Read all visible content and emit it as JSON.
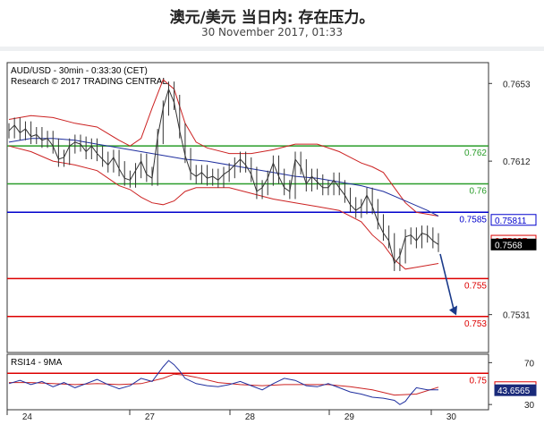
{
  "header": {
    "title": "澳元/美元 当日内: 存在压力。",
    "subtitle": "30 November 2017, 01:33"
  },
  "colors": {
    "price": "#333333",
    "bollinger": "#cc2222",
    "ma": "#1f2f9f",
    "resistance": "#2a9d2a",
    "pivot": "#0000cc",
    "support": "#dd0000",
    "current_label_bg": "#000000",
    "arrow": "#1a3a8a"
  },
  "chart_data": [
    {
      "type": "line",
      "title": "AUD/USD - 30min - 0:33:30 (CET)",
      "subtitle": "Research © 2017 TRADING CENTRAL",
      "ylim": [
        0.7511,
        0.7664
      ],
      "y_ticks": [
        "0.7653",
        "0.7612",
        "0.7531"
      ],
      "x_ticks": [
        "24",
        "27",
        "28",
        "29",
        "30"
      ],
      "levels": [
        {
          "name": "resistance-1",
          "value": 0.762,
          "label": "0.762",
          "role": "resistance"
        },
        {
          "name": "resistance-2",
          "value": 0.76,
          "label": "0.76",
          "role": "resistance"
        },
        {
          "name": "pivot",
          "value": 0.7585,
          "label": "0.7585",
          "role": "pivot"
        },
        {
          "name": "support-1",
          "value": 0.755,
          "label": "0.755",
          "role": "support"
        },
        {
          "name": "support-2",
          "value": 0.753,
          "label": "0.753",
          "role": "support"
        },
        {
          "name": "support-3",
          "value": 0.75,
          "label": "0.75",
          "role": "support"
        }
      ],
      "price_labels": [
        {
          "value": 0.7581,
          "label": "0.75811",
          "style": "blue"
        },
        {
          "value": 0.757,
          "label": "0.75697",
          "style": "red"
        },
        {
          "value": 0.7568,
          "label": "0.7568",
          "style": "current"
        }
      ],
      "series": [
        {
          "role": "price",
          "x": [
            0,
            1,
            2,
            3,
            4,
            5,
            6,
            7,
            8,
            9,
            10,
            11,
            12,
            13,
            14,
            15,
            16,
            17,
            18,
            19,
            20,
            21,
            22,
            23,
            24,
            25,
            26,
            27,
            28,
            29,
            30,
            31,
            32,
            33,
            34,
            35,
            36,
            37,
            38,
            39,
            40,
            41,
            42,
            43,
            44,
            45,
            46,
            47,
            48,
            49,
            50,
            51,
            52,
            53,
            54,
            55,
            56,
            57,
            58,
            59,
            60,
            61,
            62,
            63,
            64,
            65,
            66,
            67,
            68,
            69,
            70,
            71,
            72,
            73,
            74,
            75,
            76,
            77,
            78
          ],
          "values": [
            0.7628,
            0.7631,
            0.7627,
            0.7629,
            0.7625,
            0.7626,
            0.7623,
            0.7624,
            0.762,
            0.7613,
            0.7614,
            0.762,
            0.7622,
            0.7621,
            0.7617,
            0.762,
            0.7616,
            0.7613,
            0.761,
            0.7614,
            0.7608,
            0.7603,
            0.7602,
            0.7607,
            0.7612,
            0.7605,
            0.7603,
            0.7625,
            0.764,
            0.765,
            0.7643,
            0.7628,
            0.7615,
            0.7606,
            0.7604,
            0.7606,
            0.7603,
            0.7604,
            0.7602,
            0.7605,
            0.7607,
            0.761,
            0.7613,
            0.761,
            0.7605,
            0.7596,
            0.7598,
            0.7603,
            0.7611,
            0.7604,
            0.7598,
            0.7596,
            0.7613,
            0.7609,
            0.76,
            0.7604,
            0.7601,
            0.7598,
            0.7598,
            0.7602,
            0.7598,
            0.7594,
            0.7589,
            0.7586,
            0.7588,
            0.7594,
            0.7588,
            0.758,
            0.7574,
            0.757,
            0.7558,
            0.7562,
            0.7572,
            0.7573,
            0.757,
            0.7574,
            0.7573,
            0.757,
            0.7568
          ]
        },
        {
          "role": "moving-average",
          "x": [
            0,
            4,
            8,
            12,
            16,
            20,
            24,
            28,
            32,
            36,
            40,
            44,
            48,
            52,
            56,
            60,
            64,
            68,
            72,
            76,
            78
          ],
          "values": [
            0.7622,
            0.7624,
            0.7624,
            0.7623,
            0.7621,
            0.7619,
            0.7617,
            0.7615,
            0.7613,
            0.7612,
            0.761,
            0.7608,
            0.7606,
            0.7604,
            0.7603,
            0.7601,
            0.7599,
            0.7596,
            0.7591,
            0.7586,
            0.7583
          ]
        },
        {
          "role": "bollinger-upper",
          "x": [
            0,
            4,
            8,
            12,
            16,
            20,
            22,
            24,
            26,
            28,
            30,
            32,
            34,
            36,
            40,
            44,
            48,
            52,
            56,
            60,
            64,
            66,
            68,
            70,
            72,
            74,
            76,
            78
          ],
          "values": [
            0.7634,
            0.7636,
            0.7635,
            0.7632,
            0.763,
            0.7623,
            0.762,
            0.7624,
            0.764,
            0.7655,
            0.765,
            0.7632,
            0.7622,
            0.7619,
            0.7616,
            0.7616,
            0.7618,
            0.7621,
            0.7621,
            0.7617,
            0.7611,
            0.7609,
            0.7606,
            0.7598,
            0.759,
            0.7585,
            0.7584,
            0.7583
          ]
        },
        {
          "role": "bollinger-lower",
          "x": [
            0,
            4,
            8,
            12,
            16,
            20,
            22,
            24,
            26,
            28,
            30,
            32,
            34,
            36,
            40,
            44,
            48,
            52,
            56,
            60,
            64,
            66,
            68,
            70,
            72,
            74,
            76,
            78
          ],
          "values": [
            0.762,
            0.7617,
            0.7612,
            0.761,
            0.7607,
            0.7599,
            0.7597,
            0.7593,
            0.759,
            0.7589,
            0.7591,
            0.7596,
            0.7598,
            0.7598,
            0.7598,
            0.7595,
            0.7592,
            0.759,
            0.7588,
            0.7586,
            0.758,
            0.7573,
            0.7568,
            0.756,
            0.7555,
            0.7556,
            0.7557,
            0.7558
          ]
        }
      ]
    },
    {
      "type": "line",
      "title": "RSI14 - 9MA",
      "ylim": [
        25,
        78
      ],
      "y_ticks": [
        "70",
        "30"
      ],
      "value_labels": [
        {
          "value": 46.5582,
          "label": "46.5582",
          "style": "red"
        },
        {
          "value": 43.6565,
          "label": "43.6565",
          "style": "navy"
        }
      ],
      "series": [
        {
          "role": "rsi",
          "x": [
            0,
            2,
            4,
            6,
            8,
            10,
            12,
            14,
            16,
            18,
            20,
            22,
            24,
            26,
            28,
            29,
            30,
            31,
            32,
            34,
            36,
            38,
            40,
            42,
            44,
            46,
            48,
            50,
            52,
            54,
            56,
            58,
            60,
            62,
            64,
            66,
            68,
            70,
            71,
            72,
            73,
            74,
            76,
            78
          ],
          "values": [
            50,
            53,
            49,
            52,
            47,
            51,
            46,
            50,
            54,
            49,
            45,
            48,
            55,
            52,
            66,
            72,
            68,
            62,
            55,
            50,
            48,
            47,
            49,
            52,
            48,
            44,
            50,
            55,
            53,
            48,
            47,
            50,
            46,
            42,
            40,
            37,
            36,
            34,
            30,
            33,
            40,
            46,
            44,
            44
          ]
        },
        {
          "role": "rsi-ma",
          "x": [
            0,
            4,
            8,
            12,
            16,
            20,
            24,
            28,
            30,
            32,
            34,
            38,
            42,
            46,
            50,
            54,
            58,
            62,
            66,
            70,
            74,
            78
          ],
          "values": [
            51,
            51,
            50,
            49,
            50,
            49,
            50,
            55,
            59,
            58,
            56,
            51,
            49,
            48,
            49,
            49,
            49,
            47,
            44,
            39,
            40,
            46.5582
          ]
        }
      ]
    }
  ]
}
